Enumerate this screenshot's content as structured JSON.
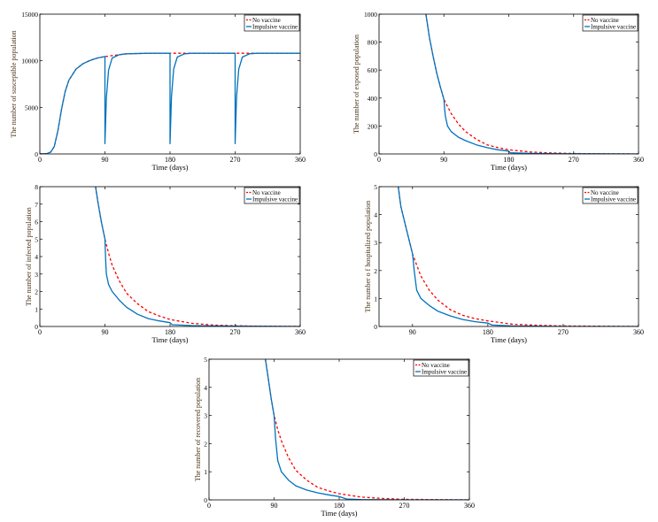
{
  "colors": {
    "no_vaccine": "#ff0000",
    "impulsive_vaccine": "#0072bd"
  },
  "chart_data": [
    {
      "type": "line",
      "xlabel": "Time (days)",
      "ylabel": "The number of susceptible population",
      "xlim": [
        0,
        360
      ],
      "ylim": [
        0,
        15000
      ],
      "xticks": [
        0,
        90,
        180,
        270,
        360
      ],
      "yticks": [
        0,
        5000,
        10000,
        15000
      ],
      "legend": [
        "No vaccine",
        "Impulsive vaccine"
      ],
      "legend_position": "top-right",
      "series": [
        {
          "name": "No vaccine",
          "style": "dashed",
          "x": [
            0,
            10,
            15,
            20,
            25,
            30,
            35,
            40,
            50,
            60,
            70,
            80,
            90,
            120,
            150,
            180,
            360
          ],
          "y": [
            0,
            50,
            200,
            800,
            2500,
            4800,
            6700,
            7900,
            9100,
            9700,
            10050,
            10300,
            10450,
            10750,
            10800,
            10800,
            10800
          ]
        },
        {
          "name": "Impulsive vaccine",
          "style": "solid",
          "x": [
            0,
            10,
            15,
            20,
            25,
            30,
            35,
            40,
            50,
            60,
            70,
            80,
            90,
            90.01,
            92,
            95,
            100,
            110,
            120,
            150,
            180,
            180.01,
            182,
            185,
            190,
            200,
            210,
            270,
            270.01,
            272,
            275,
            280,
            290,
            300,
            360
          ],
          "y": [
            0,
            50,
            200,
            800,
            2500,
            4800,
            6700,
            7900,
            9100,
            9700,
            10050,
            10300,
            10450,
            1100,
            6000,
            9000,
            10300,
            10650,
            10750,
            10800,
            10800,
            1100,
            6100,
            9100,
            10400,
            10750,
            10800,
            10800,
            1100,
            6100,
            9100,
            10400,
            10750,
            10800,
            10800
          ]
        }
      ]
    },
    {
      "type": "line",
      "xlabel": "Time (days)",
      "ylabel": "The number of exposed population",
      "xlim": [
        0,
        360
      ],
      "ylim": [
        0,
        1000
      ],
      "xticks": [
        0,
        90,
        180,
        270,
        360
      ],
      "yticks": [
        0,
        200,
        400,
        600,
        800,
        1000
      ],
      "legend": [
        "No vaccine",
        "Impulsive vaccine"
      ],
      "legend_position": "top-right",
      "series": [
        {
          "name": "No vaccine",
          "style": "dashed",
          "x": [
            65,
            70,
            75,
            80,
            85,
            90,
            100,
            110,
            120,
            135,
            150,
            165,
            180,
            210,
            240,
            270,
            300,
            360
          ],
          "y": [
            1000,
            830,
            700,
            580,
            480,
            390,
            290,
            215,
            160,
            105,
            65,
            45,
            30,
            14,
            7,
            3,
            1,
            0
          ]
        },
        {
          "name": "Impulsive vaccine",
          "style": "solid",
          "x": [
            65,
            70,
            75,
            80,
            85,
            90,
            91,
            92,
            95,
            100,
            110,
            120,
            135,
            150,
            165,
            180,
            182,
            210,
            240,
            270,
            360
          ],
          "y": [
            1000,
            830,
            700,
            580,
            480,
            390,
            320,
            270,
            200,
            160,
            120,
            95,
            65,
            45,
            30,
            20,
            8,
            4,
            2,
            1,
            0
          ]
        }
      ]
    },
    {
      "type": "line",
      "xlabel": "Time (days)",
      "ylabel": "The number of infected population",
      "xlim": [
        0,
        360
      ],
      "ylim": [
        0,
        8
      ],
      "xticks": [
        0,
        90,
        180,
        270,
        360
      ],
      "yticks": [
        0,
        1,
        2,
        3,
        4,
        5,
        6,
        7,
        8
      ],
      "legend": [
        "No vaccine",
        "Impulsive vaccine"
      ],
      "legend_position": "top-right",
      "series": [
        {
          "name": "No vaccine",
          "style": "dashed",
          "x": [
            77,
            80,
            85,
            90,
            95,
            100,
            110,
            120,
            135,
            150,
            165,
            180,
            210,
            240,
            270,
            300,
            360
          ],
          "y": [
            8,
            7.2,
            6,
            5,
            4.2,
            3.5,
            2.6,
            1.9,
            1.3,
            0.85,
            0.6,
            0.4,
            0.18,
            0.08,
            0.04,
            0.02,
            0
          ]
        },
        {
          "name": "Impulsive vaccine",
          "style": "solid",
          "x": [
            77,
            80,
            85,
            90,
            91,
            92,
            95,
            100,
            110,
            120,
            135,
            150,
            165,
            180,
            183,
            210,
            240,
            270,
            360
          ],
          "y": [
            8,
            7.2,
            6,
            5,
            3.8,
            3,
            2.4,
            2,
            1.5,
            1.1,
            0.7,
            0.45,
            0.32,
            0.22,
            0.1,
            0.05,
            0.03,
            0.02,
            0
          ]
        }
      ]
    },
    {
      "type": "line",
      "xlabel": "Time (days)",
      "ylabel": "The number o f hospitalized population",
      "xlim": [
        50,
        360
      ],
      "ylim": [
        0,
        5
      ],
      "xticks": [
        90,
        180,
        270,
        360
      ],
      "yticks": [
        0,
        1,
        2,
        3,
        4,
        5
      ],
      "legend": [
        "No vaccine",
        "Impulsive vaccine"
      ],
      "legend_position": "top-right",
      "series": [
        {
          "name": "No vaccine",
          "style": "dashed",
          "x": [
            73,
            76,
            80,
            85,
            90,
            95,
            100,
            110,
            120,
            135,
            150,
            165,
            180,
            210,
            240,
            270,
            360
          ],
          "y": [
            5,
            4.3,
            3.8,
            3.2,
            2.6,
            2.2,
            1.8,
            1.3,
            0.95,
            0.6,
            0.4,
            0.28,
            0.2,
            0.08,
            0.04,
            0.02,
            0
          ]
        },
        {
          "name": "Impulsive vaccine",
          "style": "solid",
          "x": [
            73,
            76,
            80,
            85,
            90,
            91,
            92,
            95,
            100,
            110,
            120,
            135,
            150,
            165,
            180,
            185,
            210,
            270,
            360
          ],
          "y": [
            5,
            4.3,
            3.8,
            3.2,
            2.6,
            2.3,
            2,
            1.3,
            1,
            0.75,
            0.55,
            0.38,
            0.25,
            0.17,
            0.12,
            0.05,
            0.02,
            0,
            0
          ]
        }
      ]
    },
    {
      "type": "line",
      "xlabel": "Time (days)",
      "ylabel": "The number of recovered population",
      "xlim": [
        0,
        360
      ],
      "ylim": [
        0,
        5
      ],
      "xticks": [
        0,
        90,
        180,
        270,
        360
      ],
      "yticks": [
        0,
        1,
        2,
        3,
        4,
        5
      ],
      "legend": [
        "No vaccine",
        "Impulsive vaccine"
      ],
      "legend_position": "top-right",
      "series": [
        {
          "name": "No vaccine",
          "style": "dashed",
          "x": [
            78,
            82,
            86,
            90,
            95,
            100,
            110,
            120,
            135,
            150,
            165,
            180,
            210,
            240,
            270,
            360
          ],
          "y": [
            5,
            4.3,
            3.6,
            3,
            2.5,
            2.1,
            1.5,
            1.05,
            0.7,
            0.45,
            0.32,
            0.22,
            0.1,
            0.05,
            0.02,
            0
          ]
        },
        {
          "name": "Impulsive vaccine",
          "style": "solid",
          "x": [
            78,
            82,
            86,
            90,
            91,
            92,
            95,
            100,
            110,
            120,
            135,
            150,
            165,
            180,
            190,
            210,
            270,
            360
          ],
          "y": [
            5,
            4.3,
            3.6,
            3,
            2.6,
            2.2,
            1.4,
            1,
            0.7,
            0.5,
            0.35,
            0.25,
            0.18,
            0.12,
            0.03,
            0.01,
            0,
            0
          ]
        }
      ]
    }
  ]
}
